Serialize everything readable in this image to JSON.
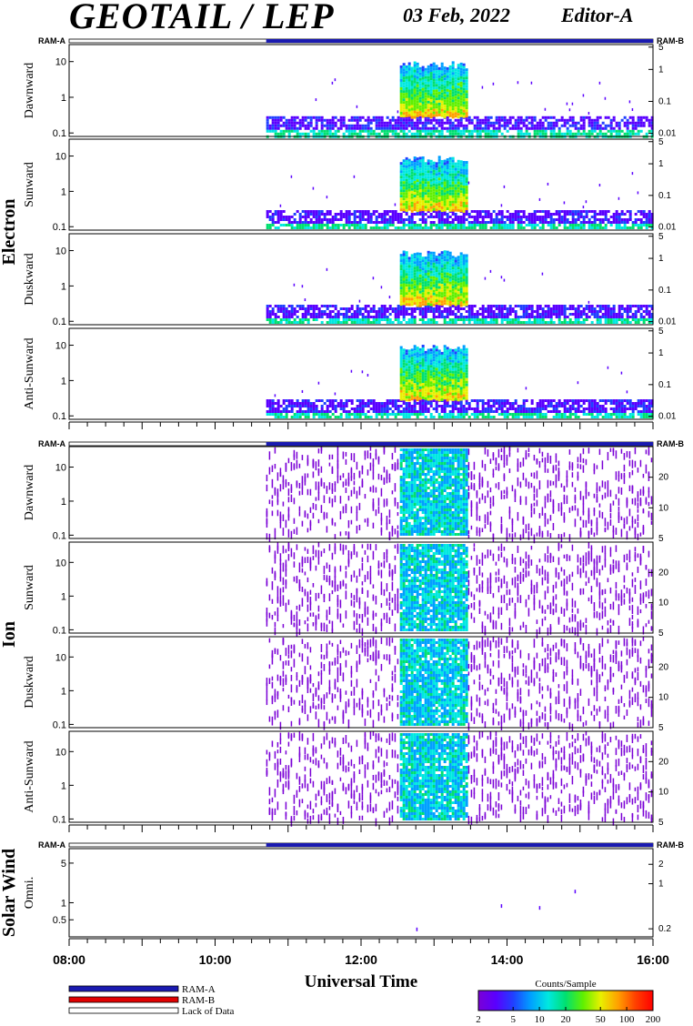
{
  "header": {
    "title": "GEOTAIL / LEP",
    "date": "03 Feb, 2022",
    "editor": "Editor-A"
  },
  "colors": {
    "ram_a": "#1a1ab0",
    "ram_b": "#e00000",
    "lack_of_data": "#ffffff",
    "colorbar": [
      "#7a00d6",
      "#5a00ff",
      "#2040ff",
      "#00a0ff",
      "#00e8e0",
      "#00e070",
      "#60f000",
      "#e8f000",
      "#ffa000",
      "#ff4000",
      "#ff0000"
    ]
  },
  "chart_data": {
    "type": "heatmap",
    "xlabel": "Universal Time",
    "x_ticks": [
      "08:00",
      "10:00",
      "12:00",
      "14:00",
      "16:00"
    ],
    "x_range_hours": [
      8,
      16
    ],
    "data_start_hour": 10.7,
    "groups": [
      {
        "name": "Electron",
        "ram_a_label": "RAM-A",
        "ram_b_label": "RAM-B",
        "panels": [
          {
            "name": "Dawnward",
            "left_ticks": [
              "10",
              "1",
              "0.1"
            ],
            "right_ticks": [
              "5",
              "1",
              "0.1",
              "0.01"
            ],
            "ylim": [
              0.08,
              30
            ],
            "right_ylim": [
              0.008,
              6
            ]
          },
          {
            "name": "Sunward",
            "left_ticks": [
              "10",
              "1",
              "0.1"
            ],
            "right_ticks": [
              "5",
              "1",
              "0.1",
              "0.01"
            ],
            "ylim": [
              0.08,
              30
            ],
            "right_ylim": [
              0.008,
              6
            ]
          },
          {
            "name": "Duskward",
            "left_ticks": [
              "10",
              "1",
              "0.1"
            ],
            "right_ticks": [
              "5",
              "1",
              "0.1",
              "0.01"
            ],
            "ylim": [
              0.08,
              30
            ],
            "right_ylim": [
              0.008,
              6
            ]
          },
          {
            "name": "Anti-Sunward",
            "left_ticks": [
              "10",
              "1",
              "0.1"
            ],
            "right_ticks": [
              "5",
              "1",
              "0.1",
              "0.01"
            ],
            "ylim": [
              0.08,
              30
            ],
            "right_ylim": [
              0.008,
              6
            ]
          }
        ]
      },
      {
        "name": "Ion",
        "ram_a_label": "RAM-A",
        "ram_b_label": "RAM-B",
        "panels": [
          {
            "name": "Dawnward",
            "left_ticks": [
              "10",
              "1",
              "0.1"
            ],
            "right_ticks": [
              "20",
              "10",
              "5"
            ],
            "ylim": [
              0.08,
              40
            ],
            "right_ylim": [
              5,
              40
            ]
          },
          {
            "name": "Sunward",
            "left_ticks": [
              "10",
              "1",
              "0.1"
            ],
            "right_ticks": [
              "20",
              "10",
              "5"
            ],
            "ylim": [
              0.08,
              40
            ],
            "right_ylim": [
              5,
              40
            ]
          },
          {
            "name": "Duskward",
            "left_ticks": [
              "10",
              "1",
              "0.1"
            ],
            "right_ticks": [
              "20",
              "10",
              "5"
            ],
            "ylim": [
              0.08,
              40
            ],
            "right_ylim": [
              5,
              40
            ]
          },
          {
            "name": "Anti-Sunward",
            "left_ticks": [
              "10",
              "1",
              "0.1"
            ],
            "right_ticks": [
              "20",
              "10",
              "5"
            ],
            "ylim": [
              0.08,
              40
            ],
            "right_ylim": [
              5,
              40
            ]
          }
        ]
      },
      {
        "name": "Solar Wind",
        "ram_a_label": "RAM-A",
        "ram_b_label": "RAM-B",
        "panels": [
          {
            "name": "Omni.",
            "left_ticks": [
              "5",
              "1",
              "0.5"
            ],
            "right_ticks": [
              "2",
              "1",
              "0.2"
            ],
            "ylim": [
              0.25,
              9
            ],
            "right_ylim": [
              0.15,
              3.5
            ]
          }
        ]
      }
    ],
    "legend": [
      "RAM-A",
      "RAM-B",
      "Lack of Data"
    ],
    "colorbar": {
      "title": "Counts/Sample",
      "ticks": [
        "2",
        "5",
        "10",
        "20",
        "50",
        "100",
        "200"
      ],
      "range": [
        2,
        200
      ]
    }
  }
}
